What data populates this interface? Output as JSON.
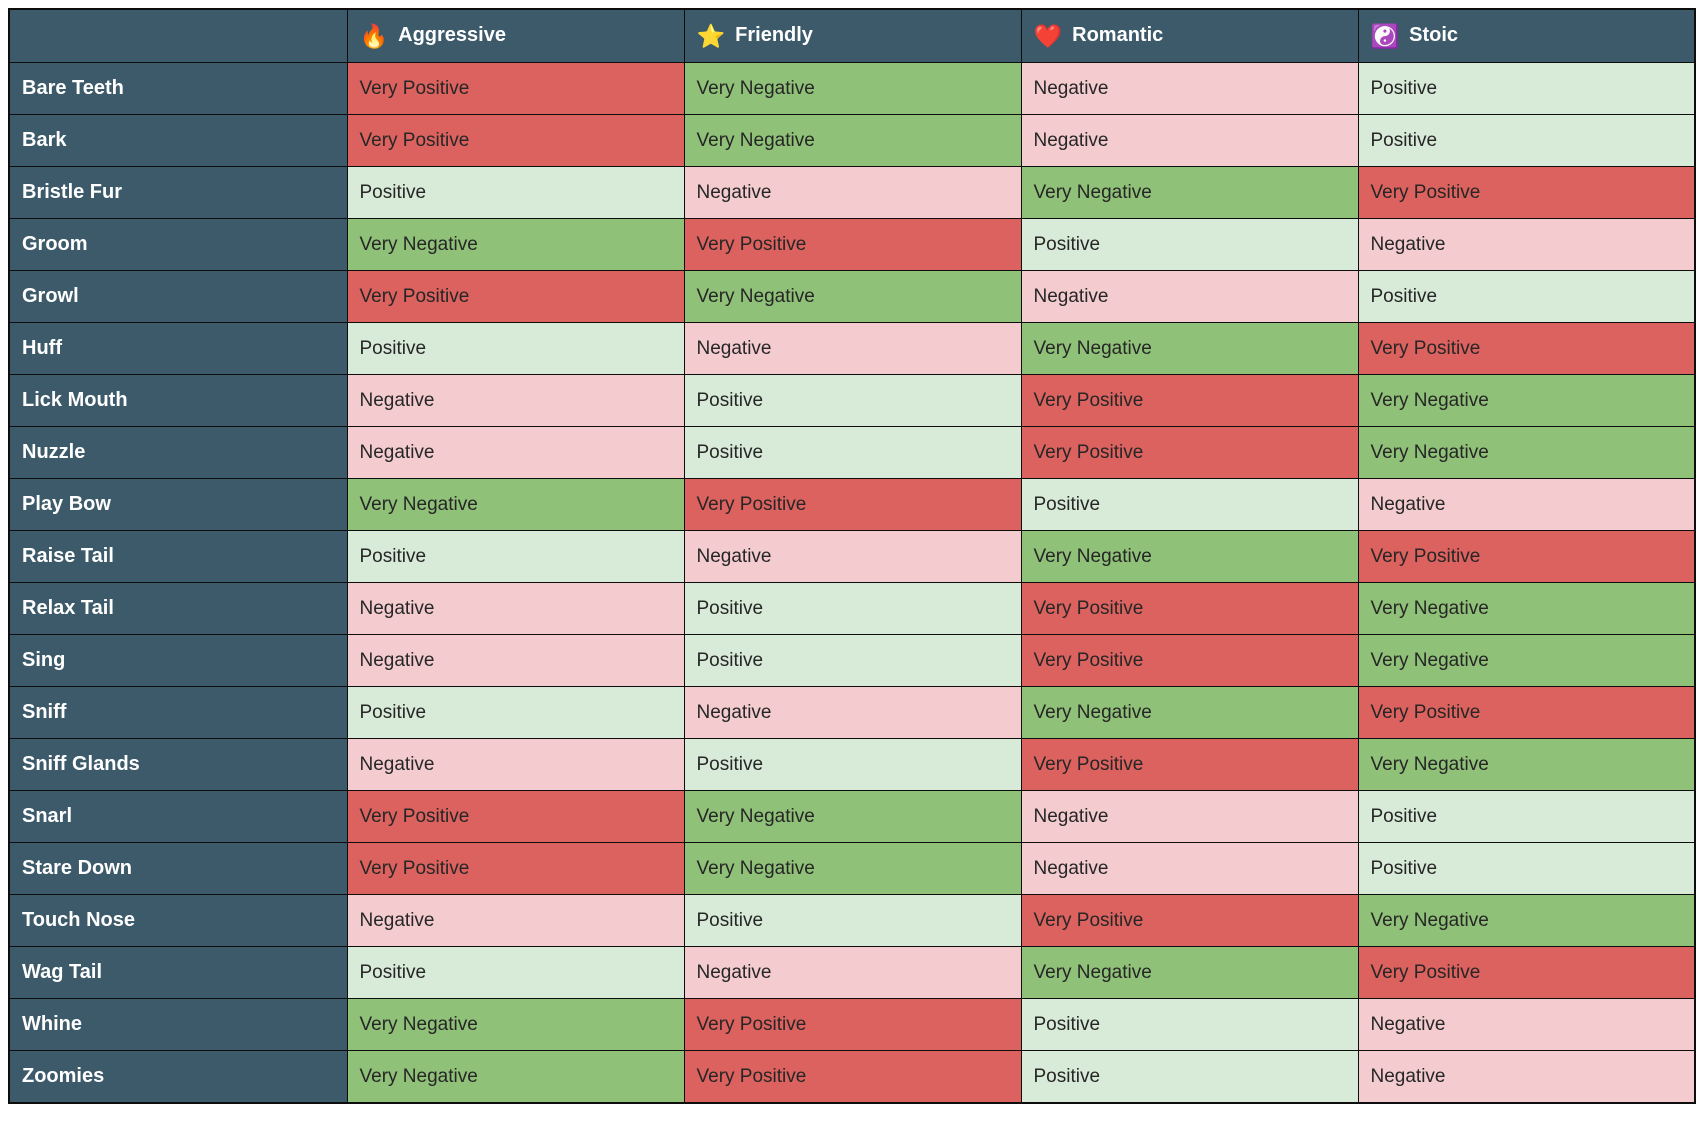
{
  "chart_data": {
    "type": "table",
    "description": "Dog behavior sentiment matrix: reaction of each personality type to each behavior",
    "corner_label": "",
    "columns": [
      {
        "icon": "🔥",
        "icon_name": "fire-icon",
        "label": "Aggressive"
      },
      {
        "icon": "⭐",
        "icon_name": "star-icon",
        "label": "Friendly"
      },
      {
        "icon": "❤️",
        "icon_name": "heart-icon",
        "label": "Romantic"
      },
      {
        "icon": "☯️",
        "icon_name": "yin-yang-icon",
        "label": "Stoic"
      }
    ],
    "rows": [
      {
        "label": "Bare Teeth",
        "values": [
          "Very Positive",
          "Very Negative",
          "Negative",
          "Positive"
        ]
      },
      {
        "label": "Bark",
        "values": [
          "Very Positive",
          "Very Negative",
          "Negative",
          "Positive"
        ]
      },
      {
        "label": "Bristle Fur",
        "values": [
          "Positive",
          "Negative",
          "Very Negative",
          "Very Positive"
        ]
      },
      {
        "label": "Groom",
        "values": [
          "Very Negative",
          "Very Positive",
          "Positive",
          "Negative"
        ]
      },
      {
        "label": "Growl",
        "values": [
          "Very Positive",
          "Very Negative",
          "Negative",
          "Positive"
        ]
      },
      {
        "label": "Huff",
        "values": [
          "Positive",
          "Negative",
          "Very Negative",
          "Very Positive"
        ]
      },
      {
        "label": "Lick Mouth",
        "values": [
          "Negative",
          "Positive",
          "Very Positive",
          "Very Negative"
        ]
      },
      {
        "label": "Nuzzle",
        "values": [
          "Negative",
          "Positive",
          "Very Positive",
          "Very Negative"
        ]
      },
      {
        "label": "Play Bow",
        "values": [
          "Very Negative",
          "Very Positive",
          "Positive",
          "Negative"
        ]
      },
      {
        "label": "Raise Tail",
        "values": [
          "Positive",
          "Negative",
          "Very Negative",
          "Very Positive"
        ]
      },
      {
        "label": "Relax Tail",
        "values": [
          "Negative",
          "Positive",
          "Very Positive",
          "Very Negative"
        ]
      },
      {
        "label": "Sing",
        "values": [
          "Negative",
          "Positive",
          "Very Positive",
          "Very Negative"
        ]
      },
      {
        "label": "Sniff",
        "values": [
          "Positive",
          "Negative",
          "Very Negative",
          "Very Positive"
        ]
      },
      {
        "label": "Sniff Glands",
        "values": [
          "Negative",
          "Positive",
          "Very Positive",
          "Very Negative"
        ]
      },
      {
        "label": "Snarl",
        "values": [
          "Very Positive",
          "Very Negative",
          "Negative",
          "Positive"
        ]
      },
      {
        "label": "Stare Down",
        "values": [
          "Very Positive",
          "Very Negative",
          "Negative",
          "Positive"
        ]
      },
      {
        "label": "Touch Nose",
        "values": [
          "Negative",
          "Positive",
          "Very Positive",
          "Very Negative"
        ]
      },
      {
        "label": "Wag Tail",
        "values": [
          "Positive",
          "Negative",
          "Very Negative",
          "Very Positive"
        ]
      },
      {
        "label": "Whine",
        "values": [
          "Very Negative",
          "Very Positive",
          "Positive",
          "Negative"
        ]
      },
      {
        "label": "Zoomies",
        "values": [
          "Very Negative",
          "Very Positive",
          "Positive",
          "Negative"
        ]
      }
    ],
    "colors": {
      "header_bg": "#3d5a6a",
      "border": "#0d0d0d",
      "header_text": "#ffffff",
      "cell_text": "#262626",
      "values": {
        "Very Positive": "#db625e",
        "Positive": "#d8ead8",
        "Negative": "#f4cccf",
        "Very Negative": "#90c178"
      }
    }
  }
}
